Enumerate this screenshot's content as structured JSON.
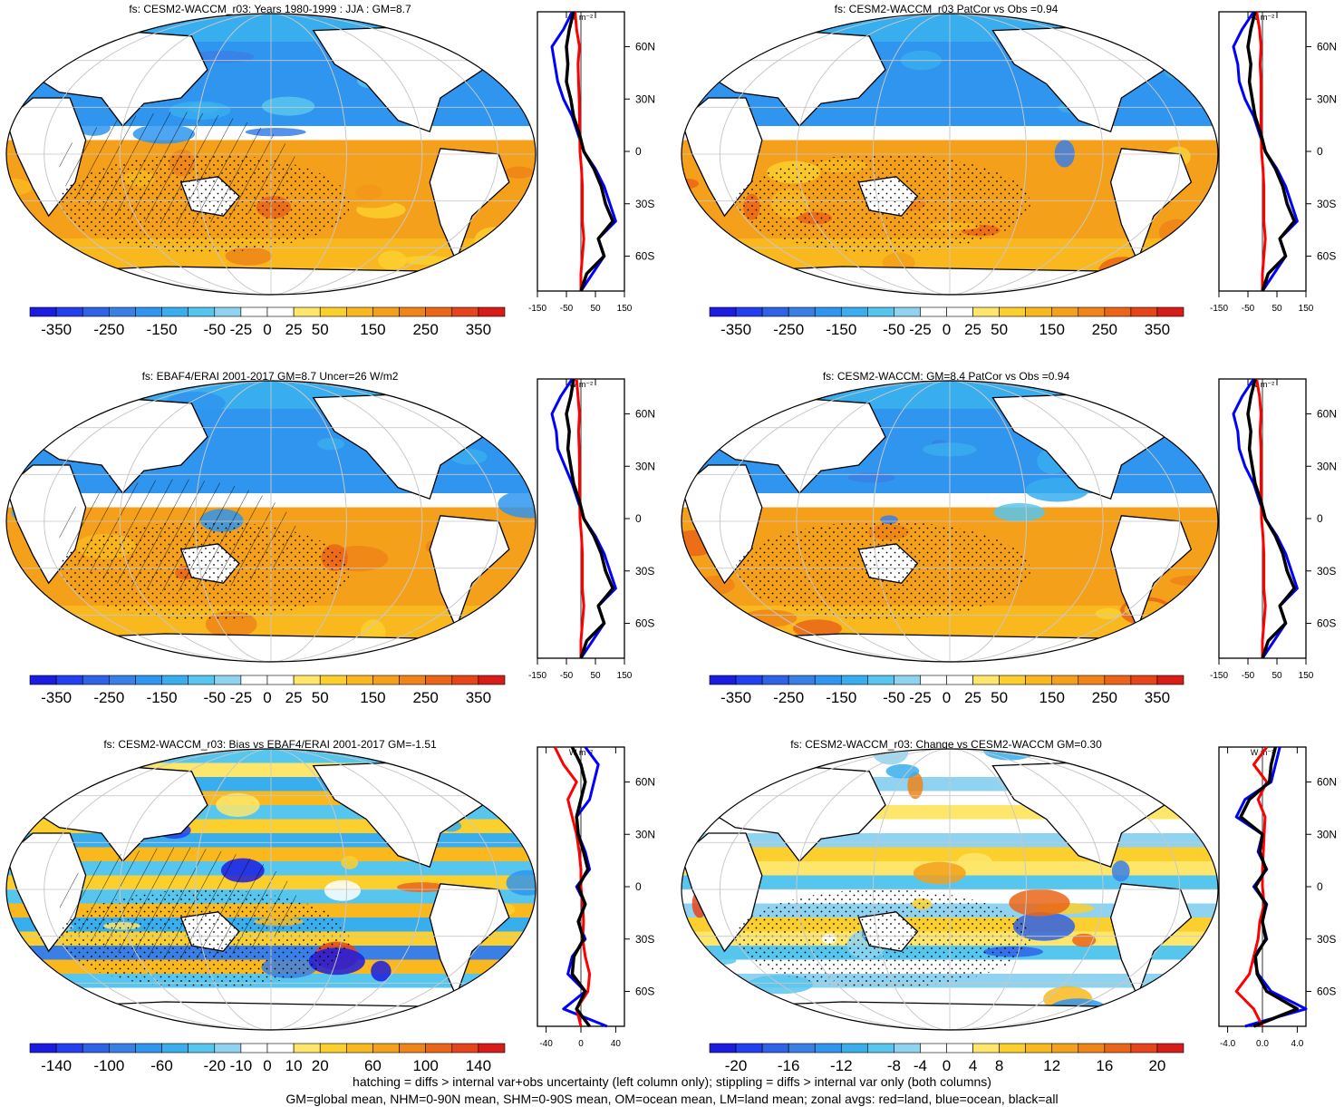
{
  "colors": {
    "map_scale": [
      "#1c1ce0",
      "#2340f0",
      "#2f62e6",
      "#3a7fe6",
      "#2f95ef",
      "#38aeef",
      "#57c6ef",
      "#8fd3f0",
      "#ffffff",
      "#ffffff",
      "#fde66a",
      "#fbcf2e",
      "#f9b81e",
      "#f5a01a",
      "#ef8418",
      "#ea6518",
      "#e6441a",
      "#d81c1a"
    ],
    "land_line": "#000000",
    "zonal_land": "#ff0000",
    "zonal_ocean": "#0000ff",
    "zonal_all": "#000000"
  },
  "footer": {
    "line1": "hatching = diffs > internal var+obs uncertainty (left column only); stippling = diffs > internal var only (both columns)",
    "line2": "GM=global mean, NHM=0-90N mean, SHM=0-90S mean, OM=ocean mean, LM=land mean; zonal avgs: red=land, blue=ocean, black=all"
  },
  "zonal_lat_labels": [
    "60N",
    "30N",
    "0",
    "30S",
    "60S"
  ],
  "zonal_unit_label": "W m⁻²",
  "chart_data": [
    {
      "type": "heatmap",
      "title": "fs: CESM2-WACCM_r03: Years 1980-1999 : JJA : GM=8.7",
      "colorbar_labels": [
        "-350",
        "-250",
        "-150",
        "-50",
        "-25",
        "0",
        "25",
        "50",
        "150",
        "250",
        "350"
      ],
      "zonal_ticks": [
        "-150",
        "-50",
        "50",
        "150"
      ],
      "zonal_xlim": [
        -150,
        150
      ],
      "lat": [
        80,
        70,
        60,
        50,
        40,
        30,
        20,
        10,
        0,
        -10,
        -20,
        -30,
        -40,
        -50,
        -60,
        -70,
        -80
      ],
      "series": [
        {
          "name": "land",
          "values": [
            -20,
            -15,
            -5,
            -10,
            -8,
            -6,
            -5,
            -4,
            -3,
            2,
            5,
            5,
            5,
            10,
            5,
            0,
            0
          ]
        },
        {
          "name": "ocean",
          "values": [
            -30,
            -60,
            -100,
            -90,
            -80,
            -60,
            -30,
            -10,
            10,
            50,
            80,
            100,
            120,
            60,
            80,
            40,
            0
          ]
        },
        {
          "name": "all",
          "values": [
            -25,
            -40,
            -50,
            -45,
            -50,
            -35,
            -25,
            -5,
            10,
            45,
            70,
            85,
            110,
            60,
            80,
            20,
            0
          ]
        }
      ]
    },
    {
      "type": "heatmap",
      "title": "fs: CESM2-WACCM_r03 PatCor vs Obs =0.94",
      "colorbar_labels": [
        "-350",
        "-250",
        "-150",
        "-50",
        "-25",
        "0",
        "25",
        "50",
        "150",
        "250",
        "350"
      ],
      "zonal_ticks": [
        "-150",
        "-50",
        "50",
        "150"
      ],
      "zonal_xlim": [
        -150,
        150
      ],
      "lat": [
        80,
        70,
        60,
        50,
        40,
        30,
        20,
        10,
        0,
        -10,
        -20,
        -30,
        -40,
        -50,
        -60,
        -70,
        -80
      ],
      "series": [
        {
          "name": "land",
          "values": [
            -20,
            -10,
            -5,
            -8,
            -5,
            -5,
            -5,
            -4,
            -3,
            2,
            5,
            5,
            5,
            10,
            5,
            0,
            0
          ]
        },
        {
          "name": "ocean",
          "values": [
            -30,
            -70,
            -100,
            -85,
            -80,
            -60,
            -30,
            -10,
            10,
            50,
            80,
            100,
            120,
            60,
            80,
            40,
            0
          ]
        },
        {
          "name": "all",
          "values": [
            -25,
            -40,
            -50,
            -40,
            -45,
            -35,
            -25,
            -5,
            10,
            45,
            70,
            85,
            110,
            60,
            80,
            20,
            0
          ]
        }
      ]
    },
    {
      "type": "heatmap",
      "title": "fs: EBAF4/ERAI 2001-2017 GM=8.7 Uncer=26 W/m2",
      "colorbar_labels": [
        "-350",
        "-250",
        "-150",
        "-50",
        "-25",
        "0",
        "25",
        "50",
        "150",
        "250",
        "350"
      ],
      "zonal_ticks": [
        "-150",
        "-50",
        "50",
        "150"
      ],
      "zonal_xlim": [
        -150,
        150
      ],
      "lat": [
        80,
        70,
        60,
        50,
        40,
        30,
        20,
        10,
        0,
        -10,
        -20,
        -30,
        -40,
        -50,
        -60,
        -70,
        -80
      ],
      "series": [
        {
          "name": "land",
          "values": [
            -15,
            -10,
            -5,
            -8,
            -6,
            -5,
            -5,
            -4,
            -3,
            2,
            5,
            5,
            5,
            10,
            5,
            0,
            0
          ]
        },
        {
          "name": "ocean",
          "values": [
            -30,
            -70,
            -100,
            -85,
            -80,
            -55,
            -30,
            -10,
            10,
            50,
            80,
            100,
            120,
            60,
            80,
            40,
            0
          ]
        },
        {
          "name": "all",
          "values": [
            -25,
            -35,
            -50,
            -40,
            -45,
            -35,
            -25,
            -5,
            10,
            45,
            70,
            85,
            110,
            60,
            80,
            20,
            0
          ]
        }
      ]
    },
    {
      "type": "heatmap",
      "title": "fs: CESM2-WACCM: GM=8.4 PatCor vs Obs =0.94",
      "colorbar_labels": [
        "-350",
        "-250",
        "-150",
        "-50",
        "-25",
        "0",
        "25",
        "50",
        "150",
        "250",
        "350"
      ],
      "zonal_ticks": [
        "-150",
        "-50",
        "50",
        "150"
      ],
      "zonal_xlim": [
        -150,
        150
      ],
      "lat": [
        80,
        70,
        60,
        50,
        40,
        30,
        20,
        10,
        0,
        -10,
        -20,
        -30,
        -40,
        -50,
        -60,
        -70,
        -80
      ],
      "series": [
        {
          "name": "land",
          "values": [
            -20,
            -10,
            -5,
            -8,
            -5,
            -5,
            -5,
            -4,
            -3,
            2,
            5,
            5,
            5,
            10,
            5,
            0,
            0
          ]
        },
        {
          "name": "ocean",
          "values": [
            -30,
            -70,
            -100,
            -85,
            -80,
            -60,
            -30,
            -10,
            10,
            50,
            80,
            100,
            120,
            60,
            80,
            40,
            0
          ]
        },
        {
          "name": "all",
          "values": [
            -25,
            -40,
            -50,
            -40,
            -45,
            -35,
            -25,
            -5,
            10,
            45,
            70,
            85,
            110,
            60,
            80,
            20,
            0
          ]
        }
      ]
    },
    {
      "type": "heatmap",
      "title": "fs: CESM2-WACCM_r03: Bias vs EBAF4/ERAI 2001-2017 GM=-1.51",
      "colorbar_labels": [
        "-140",
        "-100",
        "-60",
        "-20",
        "-10",
        "0",
        "10",
        "20",
        "60",
        "100",
        "140"
      ],
      "zonal_ticks": [
        "-40",
        "0",
        "40"
      ],
      "zonal_xlim": [
        -50,
        50
      ],
      "lat": [
        80,
        70,
        60,
        50,
        40,
        30,
        20,
        10,
        0,
        -10,
        -20,
        -30,
        -40,
        -50,
        -60,
        -70,
        -80
      ],
      "series": [
        {
          "name": "land",
          "values": [
            -30,
            -20,
            -5,
            -15,
            -10,
            -5,
            -2,
            0,
            0,
            2,
            3,
            2,
            5,
            10,
            8,
            -5,
            0
          ]
        },
        {
          "name": "ocean",
          "values": [
            5,
            20,
            15,
            10,
            -5,
            -3,
            5,
            10,
            -5,
            5,
            -3,
            5,
            -10,
            -15,
            5,
            -20,
            30
          ]
        },
        {
          "name": "all",
          "values": [
            -10,
            0,
            5,
            0,
            -5,
            -3,
            3,
            8,
            -3,
            5,
            -3,
            3,
            -8,
            -10,
            5,
            -5,
            10
          ]
        }
      ]
    },
    {
      "type": "heatmap",
      "title": "fs: CESM2-WACCM_r03: Change vs CESM2-WACCM GM=0.30",
      "colorbar_labels": [
        "-20",
        "-16",
        "-12",
        "-8",
        "-4",
        "0",
        "4",
        "8",
        "12",
        "16",
        "20"
      ],
      "zonal_ticks": [
        "-4.0",
        "0.0",
        "4.0"
      ],
      "zonal_xlim": [
        -5,
        5
      ],
      "lat": [
        80,
        70,
        60,
        50,
        40,
        30,
        20,
        10,
        0,
        -10,
        -20,
        -30,
        -40,
        -50,
        -60,
        -70,
        -80
      ],
      "series": [
        {
          "name": "land",
          "values": [
            0.5,
            -1,
            0.5,
            -0.5,
            0.3,
            0.2,
            0.1,
            0,
            0,
            0.2,
            -0.3,
            -0.5,
            -1,
            -1.5,
            -3,
            -1,
            0
          ]
        },
        {
          "name": "ocean",
          "values": [
            2,
            1.5,
            1,
            -2,
            -3,
            0,
            -0.5,
            0.5,
            -1,
            0.5,
            0,
            0.5,
            -1,
            -0.5,
            1,
            5,
            -2
          ]
        },
        {
          "name": "all",
          "values": [
            1.5,
            1,
            0.8,
            -1.5,
            -2.5,
            0,
            -0.3,
            0.4,
            -0.8,
            0.4,
            0,
            0.4,
            -0.8,
            -0.6,
            0.5,
            4,
            -1
          ]
        }
      ]
    }
  ]
}
